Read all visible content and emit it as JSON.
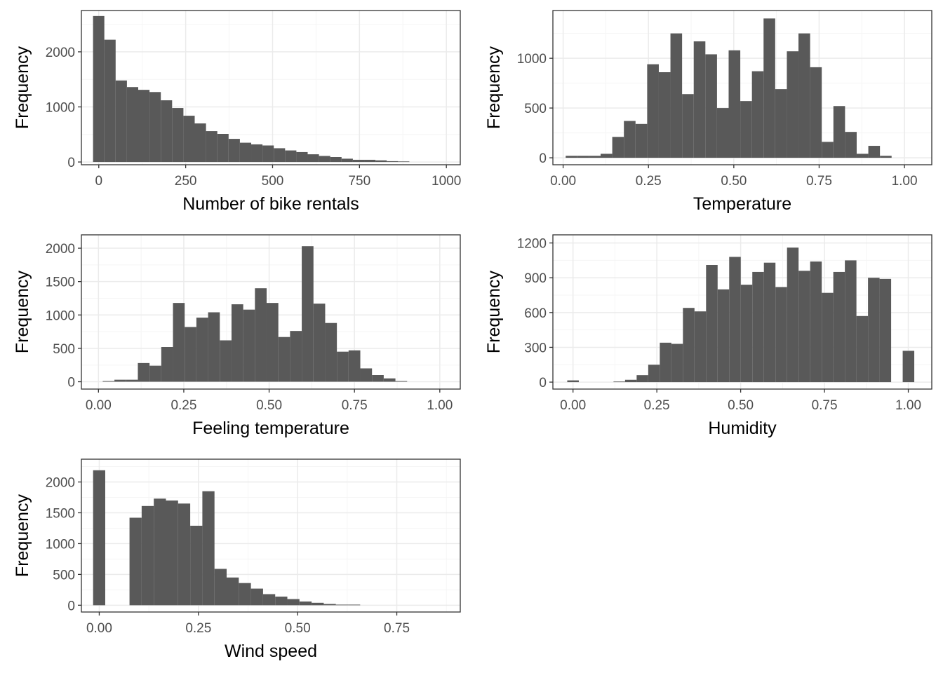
{
  "colors": {
    "bar": "#595959",
    "panel_border": "#333333",
    "grid_major": "#ebebeb",
    "grid_minor": "#f5f5f5",
    "background": "#ffffff"
  },
  "chart_data": [
    {
      "type": "bar",
      "subtype": "histogram",
      "xlabel": "Number of bike rentals",
      "ylabel": "Frequency",
      "xlim": [
        -50,
        1040
      ],
      "ylim": [
        -50,
        2750
      ],
      "xticks": [
        0,
        250,
        500,
        750,
        1000
      ],
      "xtick_labels": [
        "0",
        "250",
        "500",
        "750",
        "1000"
      ],
      "yticks": [
        0,
        1000,
        2000
      ],
      "ytick_labels": [
        "0",
        "1000",
        "2000"
      ],
      "grid": true,
      "bin_start": -16.5,
      "bin_width": 32.5,
      "values": [
        2650,
        2220,
        1480,
        1360,
        1310,
        1270,
        1120,
        980,
        840,
        700,
        560,
        510,
        420,
        350,
        320,
        300,
        250,
        210,
        180,
        140,
        110,
        90,
        60,
        40,
        40,
        30,
        15,
        10
      ]
    },
    {
      "type": "bar",
      "subtype": "histogram",
      "xlabel": "Temperature",
      "ylabel": "Frequency",
      "xlim": [
        -0.03,
        1.08
      ],
      "ylim": [
        -70,
        1480
      ],
      "xticks": [
        0,
        0.25,
        0.5,
        0.75,
        1
      ],
      "xtick_labels": [
        "0.00",
        "0.25",
        "0.50",
        "0.75",
        "1.00"
      ],
      "yticks": [
        0,
        500,
        1000
      ],
      "ytick_labels": [
        "0",
        "500",
        "1000"
      ],
      "grid": true,
      "bin_start": 0.0075,
      "bin_width": 0.0341,
      "values": [
        20,
        20,
        20,
        40,
        210,
        370,
        340,
        940,
        860,
        1250,
        640,
        1170,
        1040,
        500,
        1080,
        570,
        870,
        1400,
        690,
        1070,
        1250,
        910,
        160,
        520,
        260,
        40,
        120,
        20
      ]
    },
    {
      "type": "bar",
      "subtype": "histogram",
      "xlabel": "Feeling temperature",
      "ylabel": "Frequency",
      "xlim": [
        -0.05,
        1.06
      ],
      "ylim": [
        -110,
        2200
      ],
      "xticks": [
        0,
        0.25,
        0.5,
        0.75,
        1
      ],
      "xtick_labels": [
        "0.00",
        "0.25",
        "0.50",
        "0.75",
        "1.00"
      ],
      "yticks": [
        0,
        500,
        1000,
        1500,
        2000
      ],
      "ytick_labels": [
        "0",
        "500",
        "1000",
        "1500",
        "2000"
      ],
      "grid": true,
      "bin_start": 0.0125,
      "bin_width": 0.0343,
      "values": [
        10,
        30,
        30,
        280,
        240,
        520,
        1180,
        820,
        960,
        1040,
        620,
        1160,
        1080,
        1400,
        1180,
        670,
        760,
        2030,
        1170,
        880,
        450,
        470,
        200,
        100,
        50,
        10
      ]
    },
    {
      "type": "bar",
      "subtype": "histogram",
      "xlabel": "Humidity",
      "ylabel": "Frequency",
      "xlim": [
        -0.06,
        1.07
      ],
      "ylim": [
        -60,
        1270
      ],
      "xticks": [
        0,
        0.25,
        0.5,
        0.75,
        1
      ],
      "xtick_labels": [
        "0.00",
        "0.25",
        "0.50",
        "0.75",
        "1.00"
      ],
      "yticks": [
        0,
        300,
        600,
        900,
        1200
      ],
      "ytick_labels": [
        "0",
        "300",
        "600",
        "900",
        "1200"
      ],
      "grid": true,
      "bin_start": -0.0172,
      "bin_width": 0.0345,
      "values": [
        15,
        0,
        0,
        0,
        5,
        20,
        60,
        150,
        340,
        330,
        640,
        610,
        1010,
        800,
        1080,
        840,
        950,
        1030,
        820,
        1160,
        960,
        1040,
        770,
        950,
        1050,
        570,
        900,
        890,
        0,
        270
      ]
    },
    {
      "type": "bar",
      "subtype": "histogram",
      "xlabel": "Wind speed",
      "ylabel": "Frequency",
      "xlim": [
        -0.045,
        0.91
      ],
      "ylim": [
        -110,
        2370
      ],
      "xticks": [
        0,
        0.25,
        0.5,
        0.75
      ],
      "xtick_labels": [
        "0.00",
        "0.25",
        "0.50",
        "0.75"
      ],
      "yticks": [
        0,
        500,
        1000,
        1500,
        2000
      ],
      "ytick_labels": [
        "0",
        "500",
        "1000",
        "1500",
        "2000"
      ],
      "grid": true,
      "bin_start": -0.0155,
      "bin_width": 0.0306,
      "values": [
        2190,
        0,
        0,
        1420,
        1610,
        1730,
        1700,
        1650,
        1290,
        1850,
        590,
        450,
        360,
        270,
        180,
        140,
        100,
        60,
        40,
        20,
        10,
        10,
        0,
        0,
        0,
        0,
        0,
        0
      ]
    }
  ]
}
